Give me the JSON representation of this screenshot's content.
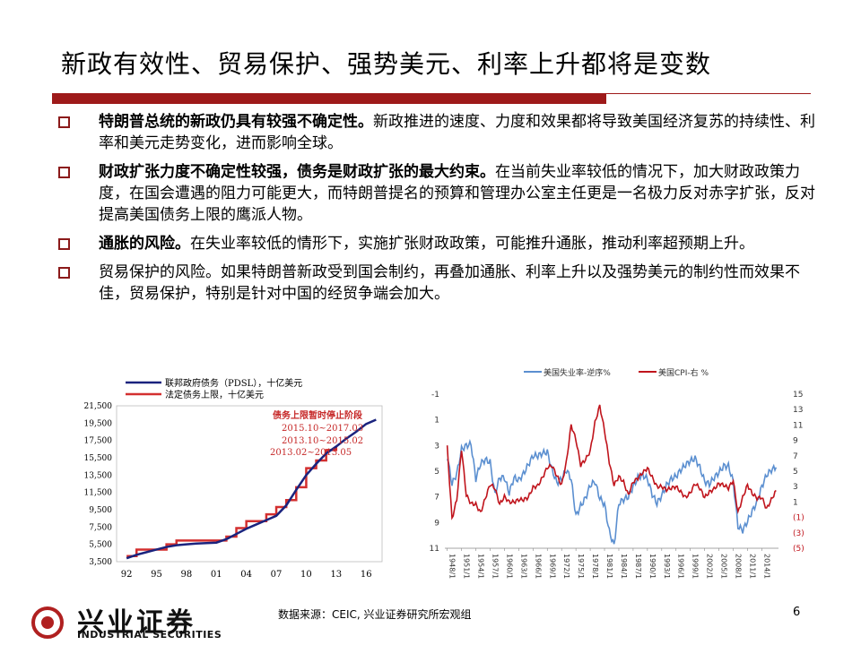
{
  "title": "新政有效性、贸易保护、强势美元、利率上升都将是变数",
  "bullets": [
    {
      "bold": "特朗普总统的新政仍具有较强不确定性。",
      "text": "新政推进的速度、力度和效果都将导致美国经济复苏的持续性、利率和美元走势变化，进而影响全球。"
    },
    {
      "bold": "财政扩张力度不确定性较强，债务是财政扩张的最大约束。",
      "text": "在当前失业率较低的情况下，加大财政政策力度，在国会遭遇的阻力可能更大，而特朗普提名的预算和管理办公室主任更是一名极力反对赤字扩张，反对提高美国债务上限的鹰派人物。"
    },
    {
      "bold": "通胀的风险。",
      "text": "在失业率较低的情形下，实施扩张财政政策，可能推升通胀，推动利率超预期上升。"
    },
    {
      "bold": "",
      "text": "贸易保护的风险。如果特朗普新政受到国会制约，再叠加通胀、利率上升以及强势美元的制约性而效果不佳，贸易保护，特别是针对中国的经贸争端会加大。"
    }
  ],
  "chart_data": [
    {
      "type": "line",
      "series": [
        {
          "name": "联邦政府债务（PDSL），十亿美元",
          "color": "#1a237e",
          "x": [
            1992,
            1993,
            1994,
            1995,
            1996,
            1997,
            1998,
            1999,
            2000,
            2001,
            2002,
            2003,
            2004,
            2005,
            2006,
            2007,
            2008,
            2009,
            2010,
            2011,
            2012,
            2013,
            2014,
            2015,
            2016,
            2017
          ],
          "values": [
            3900,
            4300,
            4600,
            4900,
            5200,
            5400,
            5500,
            5600,
            5650,
            5700,
            6100,
            6700,
            7300,
            7800,
            8300,
            8800,
            10000,
            11800,
            13500,
            14800,
            16000,
            16800,
            17700,
            18500,
            19400,
            19900
          ]
        },
        {
          "name": "法定债务上限，十亿美元",
          "color": "#d32f2f",
          "step": true,
          "x": [
            1992,
            1993,
            1996,
            1997,
            2002,
            2003,
            2004,
            2005,
            2006,
            2007,
            2008,
            2009,
            2010,
            2011,
            2012,
            2013
          ],
          "values": [
            4145,
            4900,
            5500,
            5950,
            6400,
            7384,
            8184,
            8184,
            8965,
            9815,
            10615,
            12104,
            14294,
            15194,
            16394,
            16699
          ]
        }
      ],
      "annotations": [
        "债务上限暂时停止阶段",
        "2015.10~2017.03",
        "2013.10~2015.02",
        "2013.02~2013.05"
      ],
      "xticks": [
        "92",
        "95",
        "98",
        "01",
        "04",
        "07",
        "10",
        "13",
        "16"
      ],
      "yticks": [
        "3,500",
        "5,500",
        "7,500",
        "9,500",
        "11,500",
        "13,500",
        "15,500",
        "17,500",
        "19,500",
        "21,500"
      ],
      "ylim": [
        3500,
        21500
      ],
      "xlim": [
        1991,
        2017.6
      ]
    },
    {
      "type": "line",
      "legend_position": "top",
      "series": [
        {
          "name": "美国失业率-逆序%",
          "color": "#5b8fd0",
          "axis": "left"
        },
        {
          "name": "美国CPI-右 %",
          "color": "#c0141c",
          "axis": "right"
        }
      ],
      "left_axis": {
        "ticks": [
          "-1",
          "1",
          "3",
          "5",
          "7",
          "9",
          "11"
        ],
        "ylim": [
          -1,
          11
        ],
        "inverted": true
      },
      "right_axis": {
        "ticks": [
          "15",
          "13",
          "11",
          "9",
          "7",
          "5",
          "3",
          "1",
          "(1)",
          "(3)",
          "(5)"
        ],
        "ylim": [
          -5,
          15
        ]
      },
      "xticks": [
        "1948/1",
        "1951/1",
        "1954/1",
        "1957/1",
        "1960/1",
        "1963/1",
        "1966/1",
        "1969/1",
        "1972/1",
        "1975/1",
        "1978/1",
        "1981/1",
        "1984/1",
        "1987/1",
        "1990/1",
        "1993/1",
        "1996/1",
        "1999/1",
        "2002/1",
        "2005/1",
        "2008/1",
        "2011/1",
        "2014/1"
      ],
      "unemployment": [
        [
          1948,
          3.8
        ],
        [
          1949,
          6.0
        ],
        [
          1950,
          5.2
        ],
        [
          1951,
          3.3
        ],
        [
          1952,
          3.0
        ],
        [
          1953,
          2.9
        ],
        [
          1954,
          5.6
        ],
        [
          1955,
          4.4
        ],
        [
          1956,
          4.1
        ],
        [
          1957,
          4.3
        ],
        [
          1958,
          6.8
        ],
        [
          1959,
          5.5
        ],
        [
          1960,
          5.5
        ],
        [
          1961,
          6.7
        ],
        [
          1962,
          5.5
        ],
        [
          1963,
          5.7
        ],
        [
          1964,
          5.2
        ],
        [
          1965,
          4.5
        ],
        [
          1966,
          3.8
        ],
        [
          1967,
          3.8
        ],
        [
          1968,
          3.6
        ],
        [
          1969,
          3.5
        ],
        [
          1970,
          4.9
        ],
        [
          1971,
          5.9
        ],
        [
          1972,
          5.6
        ],
        [
          1973,
          4.9
        ],
        [
          1974,
          5.6
        ],
        [
          1975,
          8.5
        ],
        [
          1976,
          7.7
        ],
        [
          1977,
          7.1
        ],
        [
          1978,
          6.1
        ],
        [
          1979,
          5.8
        ],
        [
          1980,
          7.1
        ],
        [
          1981,
          7.6
        ],
        [
          1982,
          9.7
        ],
        [
          1983,
          10.8
        ],
        [
          1984,
          7.5
        ],
        [
          1985,
          7.2
        ],
        [
          1986,
          7.0
        ],
        [
          1987,
          6.2
        ],
        [
          1988,
          5.5
        ],
        [
          1989,
          5.3
        ],
        [
          1990,
          5.6
        ],
        [
          1991,
          6.8
        ],
        [
          1992,
          7.5
        ],
        [
          1993,
          6.9
        ],
        [
          1994,
          6.1
        ],
        [
          1995,
          5.6
        ],
        [
          1996,
          5.4
        ],
        [
          1997,
          4.9
        ],
        [
          1998,
          4.5
        ],
        [
          1999,
          4.2
        ],
        [
          2000,
          4.0
        ],
        [
          2001,
          4.7
        ],
        [
          2002,
          5.8
        ],
        [
          2003,
          6.0
        ],
        [
          2004,
          5.5
        ],
        [
          2005,
          5.1
        ],
        [
          2006,
          4.6
        ],
        [
          2007,
          4.6
        ],
        [
          2008,
          5.8
        ],
        [
          2009,
          9.3
        ],
        [
          2010,
          9.6
        ],
        [
          2011,
          8.9
        ],
        [
          2012,
          8.1
        ],
        [
          2013,
          7.4
        ],
        [
          2014,
          6.2
        ],
        [
          2015,
          5.3
        ],
        [
          2016,
          4.9
        ],
        [
          2017,
          4.7
        ]
      ],
      "cpi": [
        [
          1948,
          8.1
        ],
        [
          1949,
          -1.2
        ],
        [
          1950,
          1.3
        ],
        [
          1951,
          7.9
        ],
        [
          1952,
          1.9
        ],
        [
          1953,
          0.8
        ],
        [
          1954,
          0.7
        ],
        [
          1955,
          -0.4
        ],
        [
          1956,
          1.5
        ],
        [
          1957,
          3.3
        ],
        [
          1958,
          2.8
        ],
        [
          1959,
          0.7
        ],
        [
          1960,
          1.7
        ],
        [
          1961,
          1.0
        ],
        [
          1962,
          1.0
        ],
        [
          1963,
          1.3
        ],
        [
          1964,
          1.3
        ],
        [
          1965,
          1.6
        ],
        [
          1966,
          2.9
        ],
        [
          1967,
          3.1
        ],
        [
          1968,
          4.2
        ],
        [
          1969,
          5.5
        ],
        [
          1970,
          5.7
        ],
        [
          1971,
          4.4
        ],
        [
          1972,
          3.2
        ],
        [
          1973,
          6.2
        ],
        [
          1974,
          11.0
        ],
        [
          1975,
          9.1
        ],
        [
          1976,
          5.8
        ],
        [
          1977,
          6.5
        ],
        [
          1978,
          7.6
        ],
        [
          1979,
          11.3
        ],
        [
          1980,
          13.5
        ],
        [
          1981,
          10.3
        ],
        [
          1982,
          6.2
        ],
        [
          1983,
          3.2
        ],
        [
          1984,
          4.3
        ],
        [
          1985,
          3.6
        ],
        [
          1986,
          1.9
        ],
        [
          1987,
          3.6
        ],
        [
          1988,
          4.1
        ],
        [
          1989,
          4.8
        ],
        [
          1990,
          5.4
        ],
        [
          1991,
          4.2
        ],
        [
          1992,
          3.0
        ],
        [
          1993,
          3.0
        ],
        [
          1994,
          2.6
        ],
        [
          1995,
          2.8
        ],
        [
          1996,
          3.0
        ],
        [
          1997,
          2.3
        ],
        [
          1998,
          1.6
        ],
        [
          1999,
          2.2
        ],
        [
          2000,
          3.4
        ],
        [
          2001,
          2.8
        ],
        [
          2002,
          1.6
        ],
        [
          2003,
          2.3
        ],
        [
          2004,
          2.7
        ],
        [
          2005,
          3.4
        ],
        [
          2006,
          3.2
        ],
        [
          2007,
          2.8
        ],
        [
          2008,
          3.8
        ],
        [
          2009,
          -0.4
        ],
        [
          2010,
          1.6
        ],
        [
          2011,
          3.2
        ],
        [
          2012,
          2.1
        ],
        [
          2013,
          1.5
        ],
        [
          2014,
          1.6
        ],
        [
          2015,
          0.1
        ],
        [
          2016,
          1.3
        ],
        [
          2017,
          2.5
        ]
      ],
      "xlim": [
        1947.5,
        2017.5
      ]
    }
  ],
  "footer": {
    "source": "数据来源：CEIC, 兴业证券研究所宏观组",
    "page": "6",
    "logo_cn": "兴业证券",
    "logo_en": "INDUSTRIAL SECURITIES"
  }
}
